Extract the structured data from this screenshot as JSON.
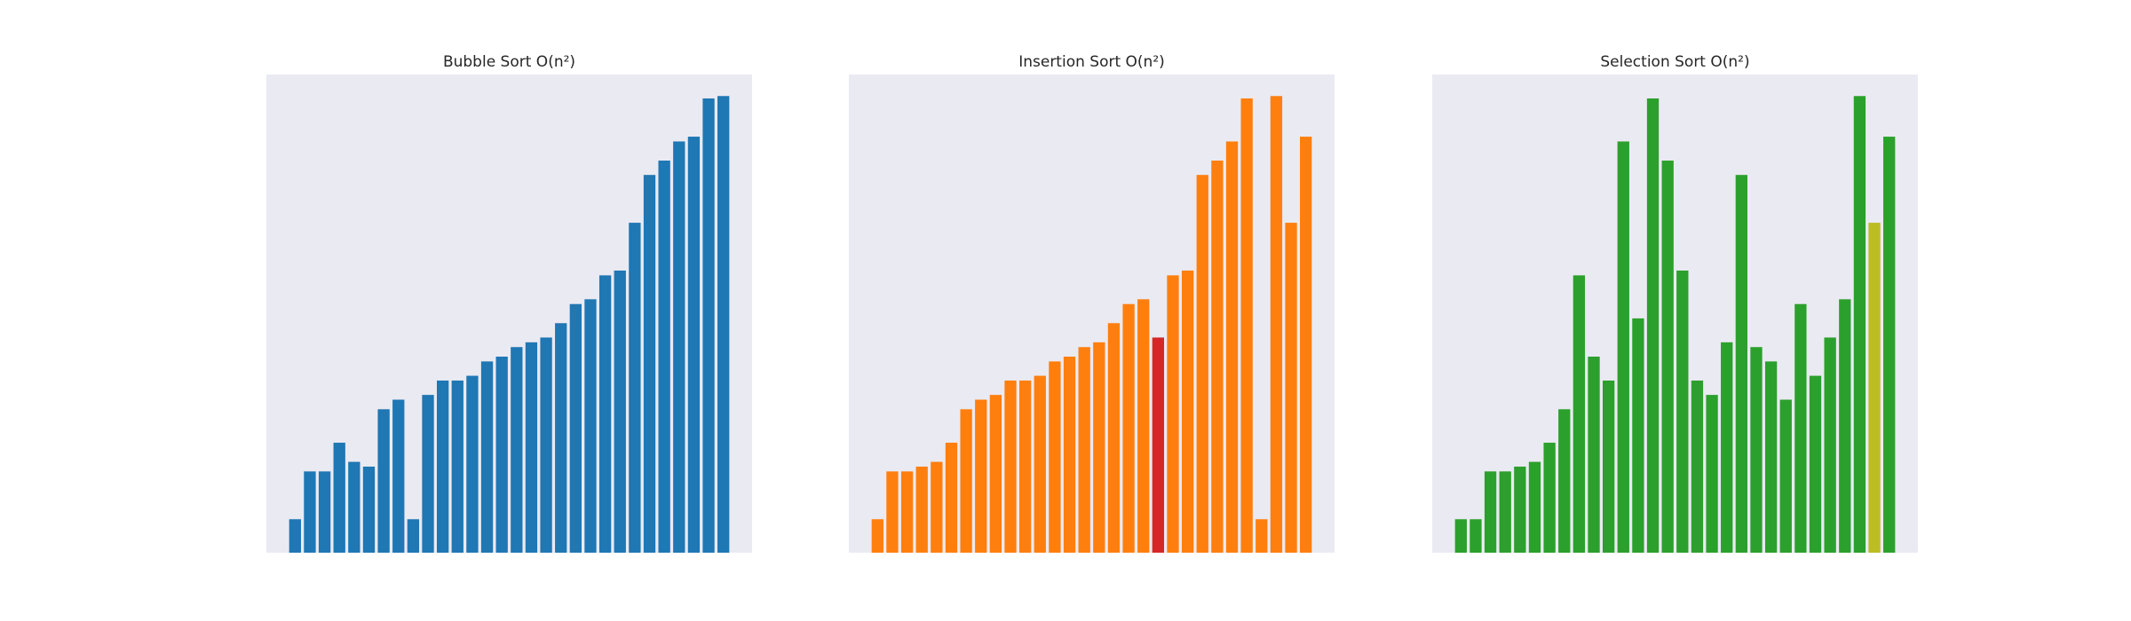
{
  "chart_data": [
    {
      "type": "bar",
      "title": "Bubble Sort O(n²)",
      "ylim": [
        0,
        100
      ],
      "values": [
        7,
        17,
        17,
        23,
        19,
        18,
        30,
        32,
        7,
        33,
        36,
        36,
        37,
        40,
        41,
        43,
        44,
        45,
        48,
        52,
        53,
        58,
        59,
        69,
        79,
        82,
        86,
        87,
        95,
        95.5
      ],
      "colors": [
        "#1f77b4",
        "#1f77b4",
        "#1f77b4",
        "#1f77b4",
        "#1f77b4",
        "#1f77b4",
        "#1f77b4",
        "#1f77b4",
        "#1f77b4",
        "#1f77b4",
        "#1f77b4",
        "#1f77b4",
        "#1f77b4",
        "#1f77b4",
        "#1f77b4",
        "#1f77b4",
        "#1f77b4",
        "#1f77b4",
        "#1f77b4",
        "#1f77b4",
        "#1f77b4",
        "#1f77b4",
        "#1f77b4",
        "#1f77b4",
        "#1f77b4",
        "#1f77b4",
        "#1f77b4",
        "#1f77b4",
        "#1f77b4",
        "#1f77b4"
      ]
    },
    {
      "type": "bar",
      "title": "Insertion Sort O(n²)",
      "ylim": [
        0,
        100
      ],
      "values": [
        7,
        17,
        17,
        18,
        19,
        23,
        30,
        32,
        33,
        36,
        36,
        37,
        40,
        41,
        43,
        44,
        48,
        52,
        53,
        45,
        58,
        59,
        79,
        82,
        86,
        95,
        7,
        95.5,
        69,
        87
      ],
      "colors": [
        "#ff7f0e",
        "#ff7f0e",
        "#ff7f0e",
        "#ff7f0e",
        "#ff7f0e",
        "#ff7f0e",
        "#ff7f0e",
        "#ff7f0e",
        "#ff7f0e",
        "#ff7f0e",
        "#ff7f0e",
        "#ff7f0e",
        "#ff7f0e",
        "#ff7f0e",
        "#ff7f0e",
        "#ff7f0e",
        "#ff7f0e",
        "#ff7f0e",
        "#ff7f0e",
        "#d62728",
        "#ff7f0e",
        "#ff7f0e",
        "#ff7f0e",
        "#ff7f0e",
        "#ff7f0e",
        "#ff7f0e",
        "#ff7f0e",
        "#ff7f0e",
        "#ff7f0e",
        "#ff7f0e"
      ]
    },
    {
      "type": "bar",
      "title": "Selection Sort O(n²)",
      "ylim": [
        0,
        100
      ],
      "values": [
        7,
        7,
        17,
        17,
        18,
        19,
        23,
        30,
        58,
        41,
        36,
        86,
        49,
        95,
        82,
        59,
        36,
        33,
        44,
        79,
        43,
        40,
        32,
        52,
        37,
        45,
        53,
        95.5,
        69,
        87
      ],
      "colors": [
        "#2ca02c",
        "#2ca02c",
        "#2ca02c",
        "#2ca02c",
        "#2ca02c",
        "#2ca02c",
        "#2ca02c",
        "#2ca02c",
        "#2ca02c",
        "#2ca02c",
        "#2ca02c",
        "#2ca02c",
        "#2ca02c",
        "#2ca02c",
        "#2ca02c",
        "#2ca02c",
        "#2ca02c",
        "#2ca02c",
        "#2ca02c",
        "#2ca02c",
        "#2ca02c",
        "#2ca02c",
        "#2ca02c",
        "#2ca02c",
        "#2ca02c",
        "#2ca02c",
        "#2ca02c",
        "#2ca02c",
        "#bcbd22",
        "#2ca02c"
      ]
    }
  ]
}
